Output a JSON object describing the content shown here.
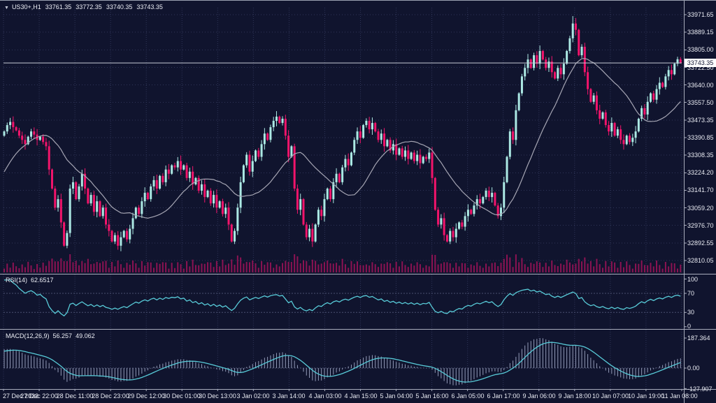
{
  "window": {
    "symbol_period": "US30+,H1",
    "open": "33761.35",
    "high": "33772.35",
    "low": "33740.35",
    "close": "33743.35"
  },
  "main_chart": {
    "price_axis": [
      "33971.65",
      "33889.15",
      "33805.00",
      "33722.50",
      "33640.00",
      "33557.50",
      "33473.35",
      "33390.85",
      "33308.35",
      "33224.20",
      "33141.70",
      "33059.20",
      "32976.70",
      "32892.55",
      "32810.05"
    ],
    "current_price": "33743.35"
  },
  "rsi_panel": {
    "label": "RSI(14)",
    "value": "62.6517",
    "axis": [
      "100",
      "70",
      "30",
      "0"
    ]
  },
  "macd_panel": {
    "label": "MACD(12,26,9)",
    "value_main": "56.257",
    "value_signal": "49.062",
    "axis": [
      "187.364",
      "0.00",
      "-127.907"
    ]
  },
  "time_axis": [
    "27 Dec 2022",
    "27 Dec 22:00",
    "28 Dec 11:00",
    "28 Dec 23:00",
    "29 Dec 12:00",
    "30 Dec 01:00",
    "30 Dec 13:00",
    "3 Jan 02:00",
    "3 Jan 14:00",
    "4 Jan 03:00",
    "4 Jan 15:00",
    "5 Jan 04:00",
    "5 Jan 16:00",
    "6 Jan 05:00",
    "6 Jan 17:00",
    "9 Jan 06:00",
    "9 Jan 18:00",
    "10 Jan 07:00",
    "10 Jan 19:00",
    "11 Jan 08:00"
  ],
  "colors": {
    "background": "#10142e",
    "up_candle": "#ace9e4",
    "down_candle": "#f2146b",
    "volume": "#8c1353",
    "ma_line": "#a6a6b4",
    "indicator_line": "#58cbd8",
    "histogram": "#939bb8",
    "grid": "#2f3558",
    "axis_text": "#e8eaf2",
    "separator": "#a9adbd",
    "price_line": "#c7cbd6"
  },
  "chart_data": {
    "type": "candlestick",
    "symbol": "US30+",
    "timeframe": "H1",
    "title": "US30+,H1 33761.35 33772.35 33740.35 33743.35",
    "price_axis_max": 33971.65,
    "price_axis_min": 32810.05,
    "ohlc_display": {
      "open": 33761.35,
      "high": 33772.35,
      "low": 33740.35,
      "close": 33743.35
    },
    "seed_closes": [
      32950,
      32980,
      33010,
      33040,
      33070,
      33100,
      33130,
      33160,
      33190,
      33220,
      33250,
      33280,
      33310,
      33340,
      33360,
      33380,
      33395,
      33405,
      33412,
      33418
    ],
    "closes": [
      33420,
      33450,
      33465,
      33440,
      33425,
      33400,
      33380,
      33360,
      33395,
      33420,
      33405,
      33380,
      33395,
      33370,
      33350,
      33240,
      33150,
      33060,
      33100,
      32990,
      32880,
      32940,
      33150,
      33180,
      33100,
      33160,
      33220,
      33150,
      33080,
      33120,
      33040,
      33090,
      33020,
      33060,
      32980,
      32950,
      32900,
      32930,
      32880,
      32920,
      32950,
      32910,
      32960,
      33010,
      33060,
      33030,
      33090,
      33130,
      33100,
      33160,
      33190,
      33150,
      33210,
      33180,
      33240,
      33220,
      33260,
      33250,
      33280,
      33240,
      33260,
      33200,
      33230,
      33170,
      33200,
      33140,
      33170,
      33110,
      33140,
      33080,
      33120,
      33060,
      33090,
      33030,
      33060,
      32980,
      32900,
      32950,
      33060,
      33180,
      33260,
      33310,
      33230,
      33280,
      33330,
      33300,
      33360,
      33410,
      33380,
      33440,
      33470,
      33490,
      33460,
      33480,
      33400,
      33300,
      33350,
      33150,
      33050,
      33100,
      32980,
      32920,
      32960,
      32900,
      32980,
      33050,
      33020,
      33100,
      33150,
      33100,
      33180,
      33220,
      33180,
      33250,
      33290,
      33260,
      33320,
      33380,
      33420,
      33390,
      33450,
      33470,
      33430,
      33460,
      33420,
      33380,
      33410,
      33350,
      33380,
      33330,
      33360,
      33310,
      33340,
      33300,
      33330,
      33290,
      33320,
      33280,
      33310,
      33270,
      33300,
      33290,
      33320,
      33200,
      33050,
      32980,
      33010,
      32930,
      32900,
      32950,
      32920,
      32960,
      32990,
      32970,
      33020,
      33050,
      33030,
      33070,
      33100,
      33080,
      33110,
      33140,
      33110,
      33130,
      33070,
      33020,
      33060,
      33180,
      33300,
      33420,
      33380,
      33520,
      33600,
      33680,
      33720,
      33760,
      33720,
      33780,
      33740,
      33800,
      33760,
      33720,
      33750,
      33700,
      33670,
      33720,
      33690,
      33740,
      33800,
      33860,
      33930,
      33900,
      33780,
      33820,
      33700,
      33620,
      33560,
      33590,
      33520,
      33480,
      33510,
      33450,
      33420,
      33460,
      33400,
      33430,
      33380,
      33360,
      33400,
      33370,
      33390,
      33420,
      33480,
      33530,
      33500,
      33560,
      33600,
      33570,
      33620,
      33650,
      33630,
      33680,
      33710,
      33690,
      33740,
      33761,
      33743
    ],
    "spike_high": {
      "index": 190,
      "price": 33965
    },
    "ma_period": 21,
    "rsi": {
      "period": 14,
      "last_value": 62.6517,
      "overbought": 70,
      "oversold": 30,
      "range": [
        0,
        100
      ]
    },
    "macd": {
      "fast": 12,
      "slow": 26,
      "signal": 9,
      "last_main": 56.257,
      "last_signal": 49.062,
      "axis_max": 187.364,
      "axis_min": -127.907
    }
  }
}
